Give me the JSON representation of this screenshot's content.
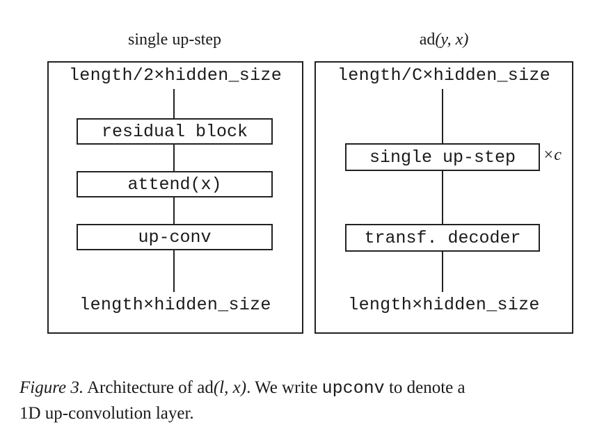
{
  "left_panel": {
    "title": "single up-step",
    "top_label": "length/2×hidden_size",
    "blocks": [
      "residual block",
      "attend(x)",
      "up-conv"
    ],
    "bottom_label": "length×hidden_size"
  },
  "right_panel": {
    "title_func": "ad",
    "title_args": "(y, x)",
    "top_label": "length/C×hidden_size",
    "blocks": [
      "single up-step",
      "transf. decoder"
    ],
    "repeat_label": "×c",
    "bottom_label": "length×hidden_size"
  },
  "caption": {
    "figure_label": "Figure 3.",
    "text_1": " Architecture of ",
    "func": "ad",
    "args": "(l, x)",
    "text_2": ". We write ",
    "code": "upconv",
    "text_3": " to denote a",
    "line_2": "1D up-convolution layer."
  }
}
